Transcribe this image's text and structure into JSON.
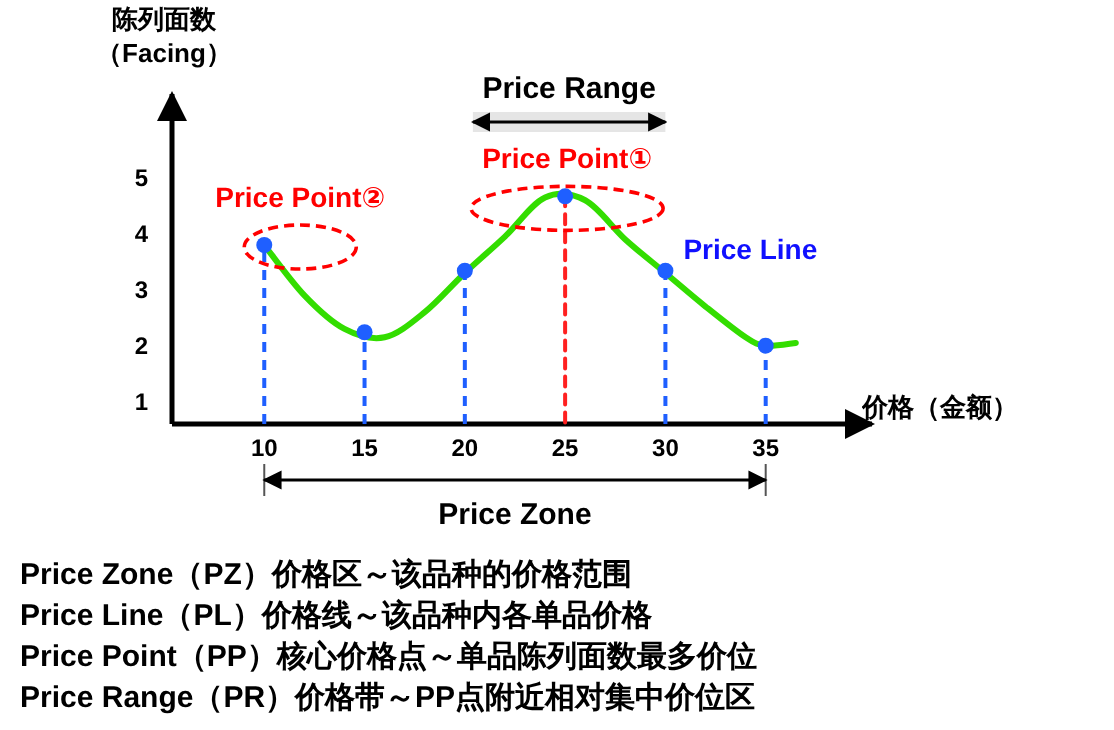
{
  "chart_data": {
    "type": "line",
    "ylabel": "陈列面数（Facing）",
    "xlabel": "价格（金额）",
    "xlim": [
      5.4,
      40.3
    ],
    "ylim": [
      0.6,
      6.5
    ],
    "xticks": [
      10,
      15,
      20,
      25,
      30,
      35
    ],
    "yticks": [
      1,
      2,
      3,
      4,
      5
    ],
    "grid": false,
    "series": [
      {
        "color": "#33dd00",
        "x": [
          10,
          12,
          14,
          16,
          18,
          20,
          22,
          24,
          26,
          28,
          30,
          32,
          34,
          35,
          36.5
        ],
        "values": [
          3.8,
          2.9,
          2.3,
          2.15,
          2.6,
          3.3,
          3.95,
          4.65,
          4.6,
          3.9,
          3.3,
          2.7,
          2.15,
          2.0,
          2.05
        ]
      },
      {
        "type": "lollipop",
        "color": "#1f5fff",
        "marker": "circle",
        "line_style": "dashed",
        "x": [
          10,
          15,
          20,
          25,
          30,
          35
        ],
        "values": [
          3.8,
          2.24,
          3.34,
          4.67,
          3.34,
          2.0
        ]
      },
      {
        "type": "line",
        "color": "#ff2020",
        "line_style": "dashed",
        "x": [
          25,
          25
        ],
        "values": [
          4.67,
          0.6
        ]
      }
    ],
    "bands": [
      {
        "axis": "x",
        "from": 20.4,
        "to": 30,
        "label": "Price Range",
        "color": "#000000"
      }
    ],
    "annotations": [
      {
        "text": "Price Point②",
        "x": 10,
        "y": 3.8
      },
      {
        "text": "Price Point①",
        "x": 25,
        "y": 4.67
      },
      {
        "text": "Price Line",
        "x": 30,
        "y": 3.34
      },
      "Price Zone",
      "Price Zone（PZ）价格区～该品种的价格范围",
      "Price Line（PL）价格线～该品种内各单品价格",
      "Price Point（PP）核心价格点～单品陈列面数最多价位",
      "Price Range（PR）价格带～PP点附近相对集中价位区"
    ]
  }
}
